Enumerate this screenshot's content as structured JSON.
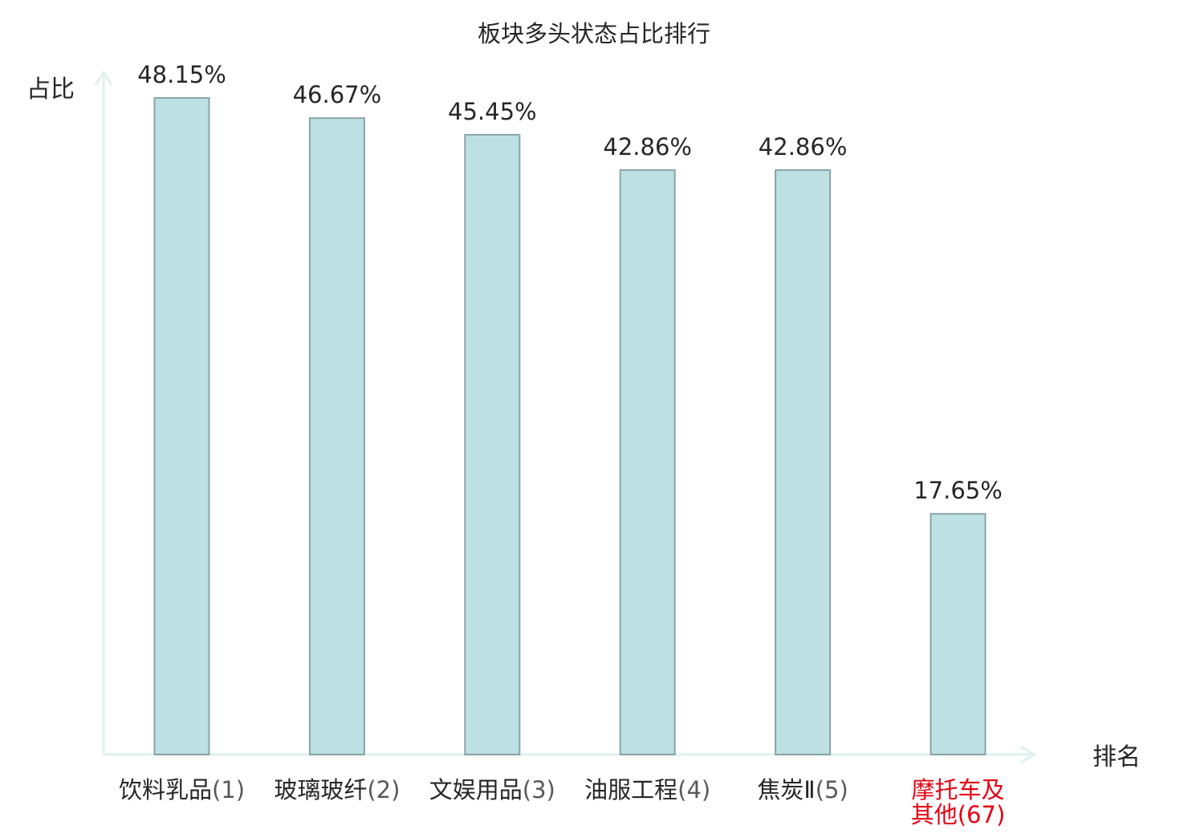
{
  "chart_data": {
    "type": "bar",
    "title": "板块多头状态占比排行",
    "xlabel": "排名",
    "ylabel": "占比",
    "categories": [
      {
        "name": "饮料乳品",
        "rank": "(1)",
        "highlight": false
      },
      {
        "name": "玻璃玻纤",
        "rank": "(2)",
        "highlight": false
      },
      {
        "name": "文娱用品",
        "rank": "(3)",
        "highlight": false
      },
      {
        "name": "油服工程",
        "rank": "(4)",
        "highlight": false
      },
      {
        "name": "焦炭Ⅱ",
        "rank": "(5)",
        "highlight": false
      },
      {
        "name": "摩托车及其他",
        "name_lines": [
          "摩托车及",
          "其他"
        ],
        "rank": "(67)",
        "highlight": true
      }
    ],
    "values": [
      48.15,
      46.67,
      45.45,
      42.86,
      42.86,
      17.65
    ],
    "value_labels": [
      "48.15%",
      "46.67%",
      "45.45%",
      "42.86%",
      "42.86%",
      "17.65%"
    ],
    "ylim": [
      0,
      48.15
    ],
    "grid": false,
    "legend": "none"
  },
  "colors": {
    "bar_fill": "#bde0e3",
    "bar_stroke": "#89a4a7",
    "axis": "#dff1ef",
    "text": "#262626",
    "rank_text": "#595959",
    "highlight": "#e60012"
  }
}
